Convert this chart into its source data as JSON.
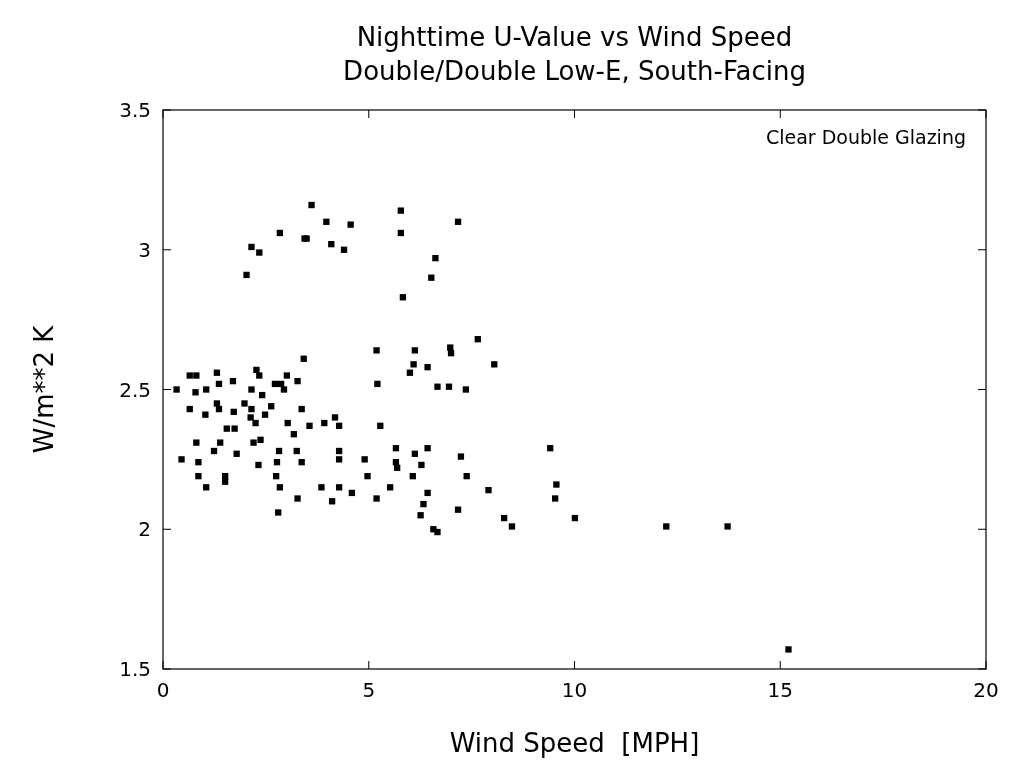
{
  "chart_data": {
    "type": "scatter",
    "title": "Nighttime U-Value vs Wind Speed",
    "subtitle": "Double/Double Low-E, South-Facing",
    "xlabel": "Wind Speed  [MPH]",
    "ylabel": "W/m**2 K",
    "annotations": [
      "Clear Double Glazing"
    ],
    "xlim": [
      0,
      20
    ],
    "xticks": [
      0,
      5,
      10,
      15,
      20
    ],
    "ylim": [
      1.5,
      3.5
    ],
    "yticks": [
      1.5,
      2,
      2.5,
      3,
      3.5
    ],
    "marker": "square",
    "series": [
      {
        "color": "#000000",
        "x": [
          3.97,
          4.56,
          2.84,
          3.44,
          3.49,
          4.09,
          4.4,
          2.15,
          2.34,
          2.03,
          5.78,
          7.17,
          6.62,
          6.52,
          5.83,
          3.61,
          5.78,
          0.65,
          0.81,
          1.31,
          2.27,
          2.34,
          3.01,
          0.33,
          1.36,
          1.7,
          3.27,
          2.72,
          2.87,
          2.94,
          0.79,
          1.05,
          2.15,
          2.41,
          0.65,
          1.03,
          1.31,
          1.36,
          1.72,
          1.98,
          2.15,
          2.13,
          2.63,
          2.48,
          2.25,
          3.37,
          1.55,
          1.74,
          3.03,
          3.56,
          3.92,
          4.18,
          4.28,
          3.18,
          0.81,
          1.39,
          1.24,
          2.2,
          2.37,
          2.82,
          3.25,
          4.28,
          0.45,
          1.79,
          4.28,
          0.86,
          2.32,
          2.77,
          3.37,
          0.86,
          1.51,
          1.51,
          2.75,
          1.05,
          2.84,
          3.85,
          4.28,
          4.59,
          3.27,
          4.11,
          2.8,
          3.42,
          7.65,
          5.19,
          6.12,
          6.98,
          7.0,
          6.09,
          6.43,
          6.0,
          8.05,
          5.21,
          6.67,
          6.95,
          7.36,
          5.28,
          5.66,
          4.9,
          5.66,
          5.69,
          6.12,
          6.43,
          6.28,
          7.24,
          4.97,
          6.07,
          7.38,
          5.52,
          5.19,
          6.43,
          7.91,
          6.33,
          6.26,
          7.17,
          6.57,
          6.67,
          8.29,
          8.48,
          9.41,
          9.56,
          9.53,
          10.01,
          12.23,
          13.72,
          15.2
        ],
        "values": [
          3.1,
          3.09,
          3.06,
          3.04,
          3.04,
          3.02,
          3.0,
          3.01,
          2.99,
          2.91,
          3.06,
          3.1,
          2.97,
          2.9,
          2.83,
          3.16,
          3.14,
          2.55,
          2.55,
          2.56,
          2.57,
          2.55,
          2.55,
          2.5,
          2.52,
          2.53,
          2.53,
          2.52,
          2.52,
          2.5,
          2.49,
          2.5,
          2.5,
          2.48,
          2.43,
          2.41,
          2.45,
          2.43,
          2.42,
          2.45,
          2.43,
          2.4,
          2.44,
          2.41,
          2.38,
          2.43,
          2.36,
          2.36,
          2.38,
          2.37,
          2.38,
          2.4,
          2.37,
          2.34,
          2.31,
          2.31,
          2.28,
          2.31,
          2.32,
          2.28,
          2.28,
          2.28,
          2.25,
          2.27,
          2.25,
          2.24,
          2.23,
          2.24,
          2.24,
          2.19,
          2.19,
          2.17,
          2.19,
          2.15,
          2.15,
          2.15,
          2.15,
          2.13,
          2.11,
          2.1,
          2.06,
          2.61,
          2.68,
          2.64,
          2.64,
          2.65,
          2.63,
          2.59,
          2.58,
          2.56,
          2.59,
          2.52,
          2.51,
          2.51,
          2.5,
          2.37,
          2.29,
          2.25,
          2.24,
          2.22,
          2.27,
          2.29,
          2.23,
          2.26,
          2.19,
          2.19,
          2.19,
          2.15,
          2.11,
          2.13,
          2.14,
          2.09,
          2.05,
          2.07,
          2.0,
          1.99,
          2.04,
          2.01,
          2.29,
          2.16,
          2.11,
          2.04,
          2.01,
          2.01,
          1.57
        ]
      }
    ]
  }
}
